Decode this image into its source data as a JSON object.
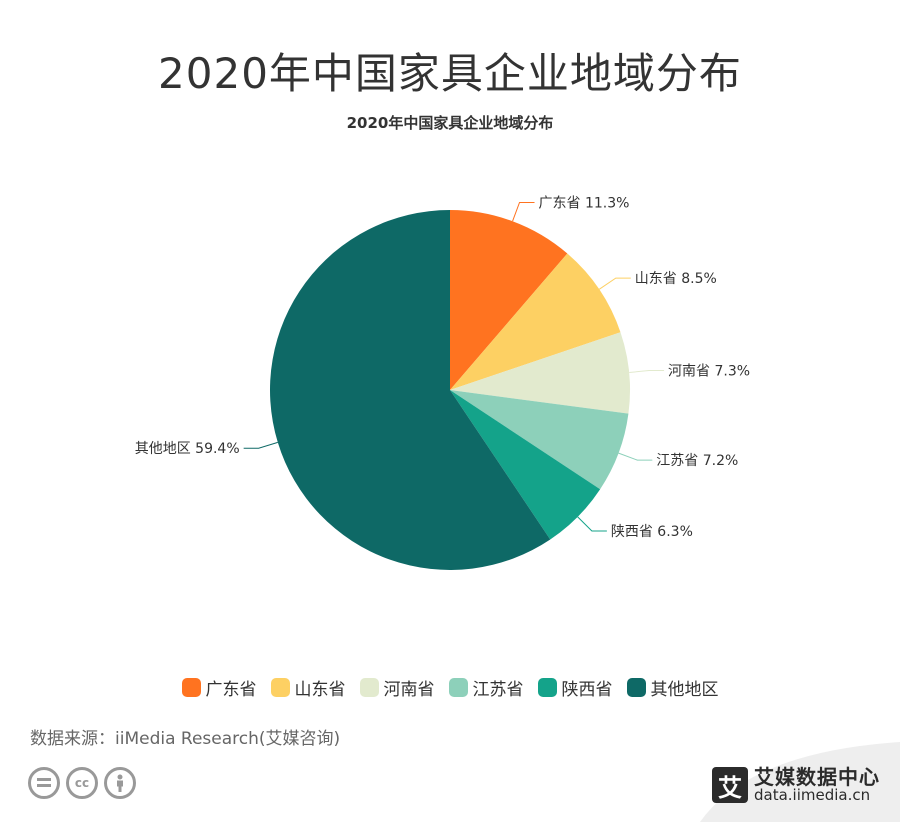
{
  "title": "2020年中国家具企业地域分布",
  "subtitle": "2020年中国家具企业地域分布",
  "chart_data": {
    "type": "pie",
    "title": "2020年中国家具企业地域分布",
    "categories": [
      "广东省",
      "山东省",
      "河南省",
      "江苏省",
      "陕西省",
      "其他地区"
    ],
    "values": [
      11.3,
      8.5,
      7.3,
      7.2,
      6.3,
      59.4
    ],
    "unit": "%",
    "colors": [
      "#FF7320",
      "#FDD063",
      "#E2EACE",
      "#8DD0BA",
      "#14A38A",
      "#0E6966"
    ],
    "legend_position": "bottom"
  },
  "source": "数据来源：iiMedia Research(艾媒咨询)",
  "license_icons": [
    "cc-nd-icon",
    "cc-icon",
    "cc-by-icon"
  ],
  "brand": {
    "logo_char": "艾",
    "name": "艾媒数据中心",
    "url": "data.iimedia.cn"
  }
}
